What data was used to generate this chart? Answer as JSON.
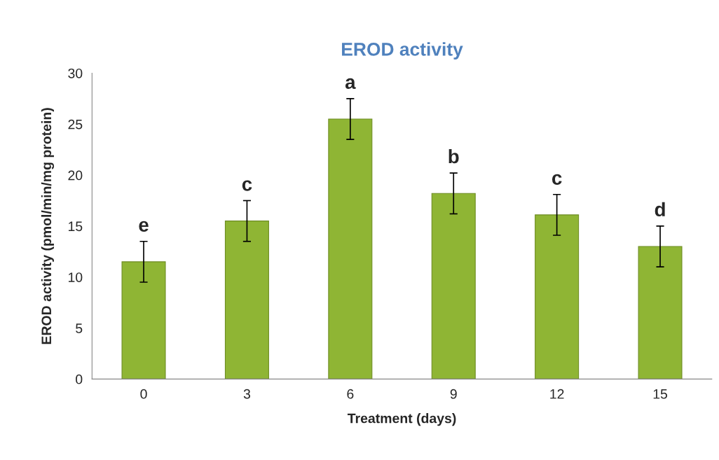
{
  "chart_data": {
    "type": "bar",
    "title": "EROD activity",
    "xlabel": "Treatment (days)",
    "ylabel": "EROD activity (pmol/min/mg protein)",
    "categories": [
      "0",
      "3",
      "6",
      "9",
      "12",
      "15"
    ],
    "values": [
      11.5,
      15.5,
      25.5,
      18.2,
      16.1,
      13.0
    ],
    "errors": [
      2,
      2,
      2,
      2,
      2,
      2
    ],
    "color": "#8fb534",
    "ylim": [
      0,
      30
    ],
    "yticks": [
      0,
      5,
      10,
      15,
      20,
      25,
      30
    ],
    "grid": false,
    "annotations": [
      {
        "text": "e",
        "x": "0",
        "y": 13.5
      },
      {
        "text": "c",
        "x": "3",
        "y": 17.5
      },
      {
        "text": "a",
        "x": "6",
        "y": 27.5
      },
      {
        "text": "b",
        "x": "9",
        "y": 20.2
      },
      {
        "text": "c",
        "x": "12",
        "y": 18.1
      },
      {
        "text": "d",
        "x": "15",
        "y": 15.0
      }
    ]
  }
}
